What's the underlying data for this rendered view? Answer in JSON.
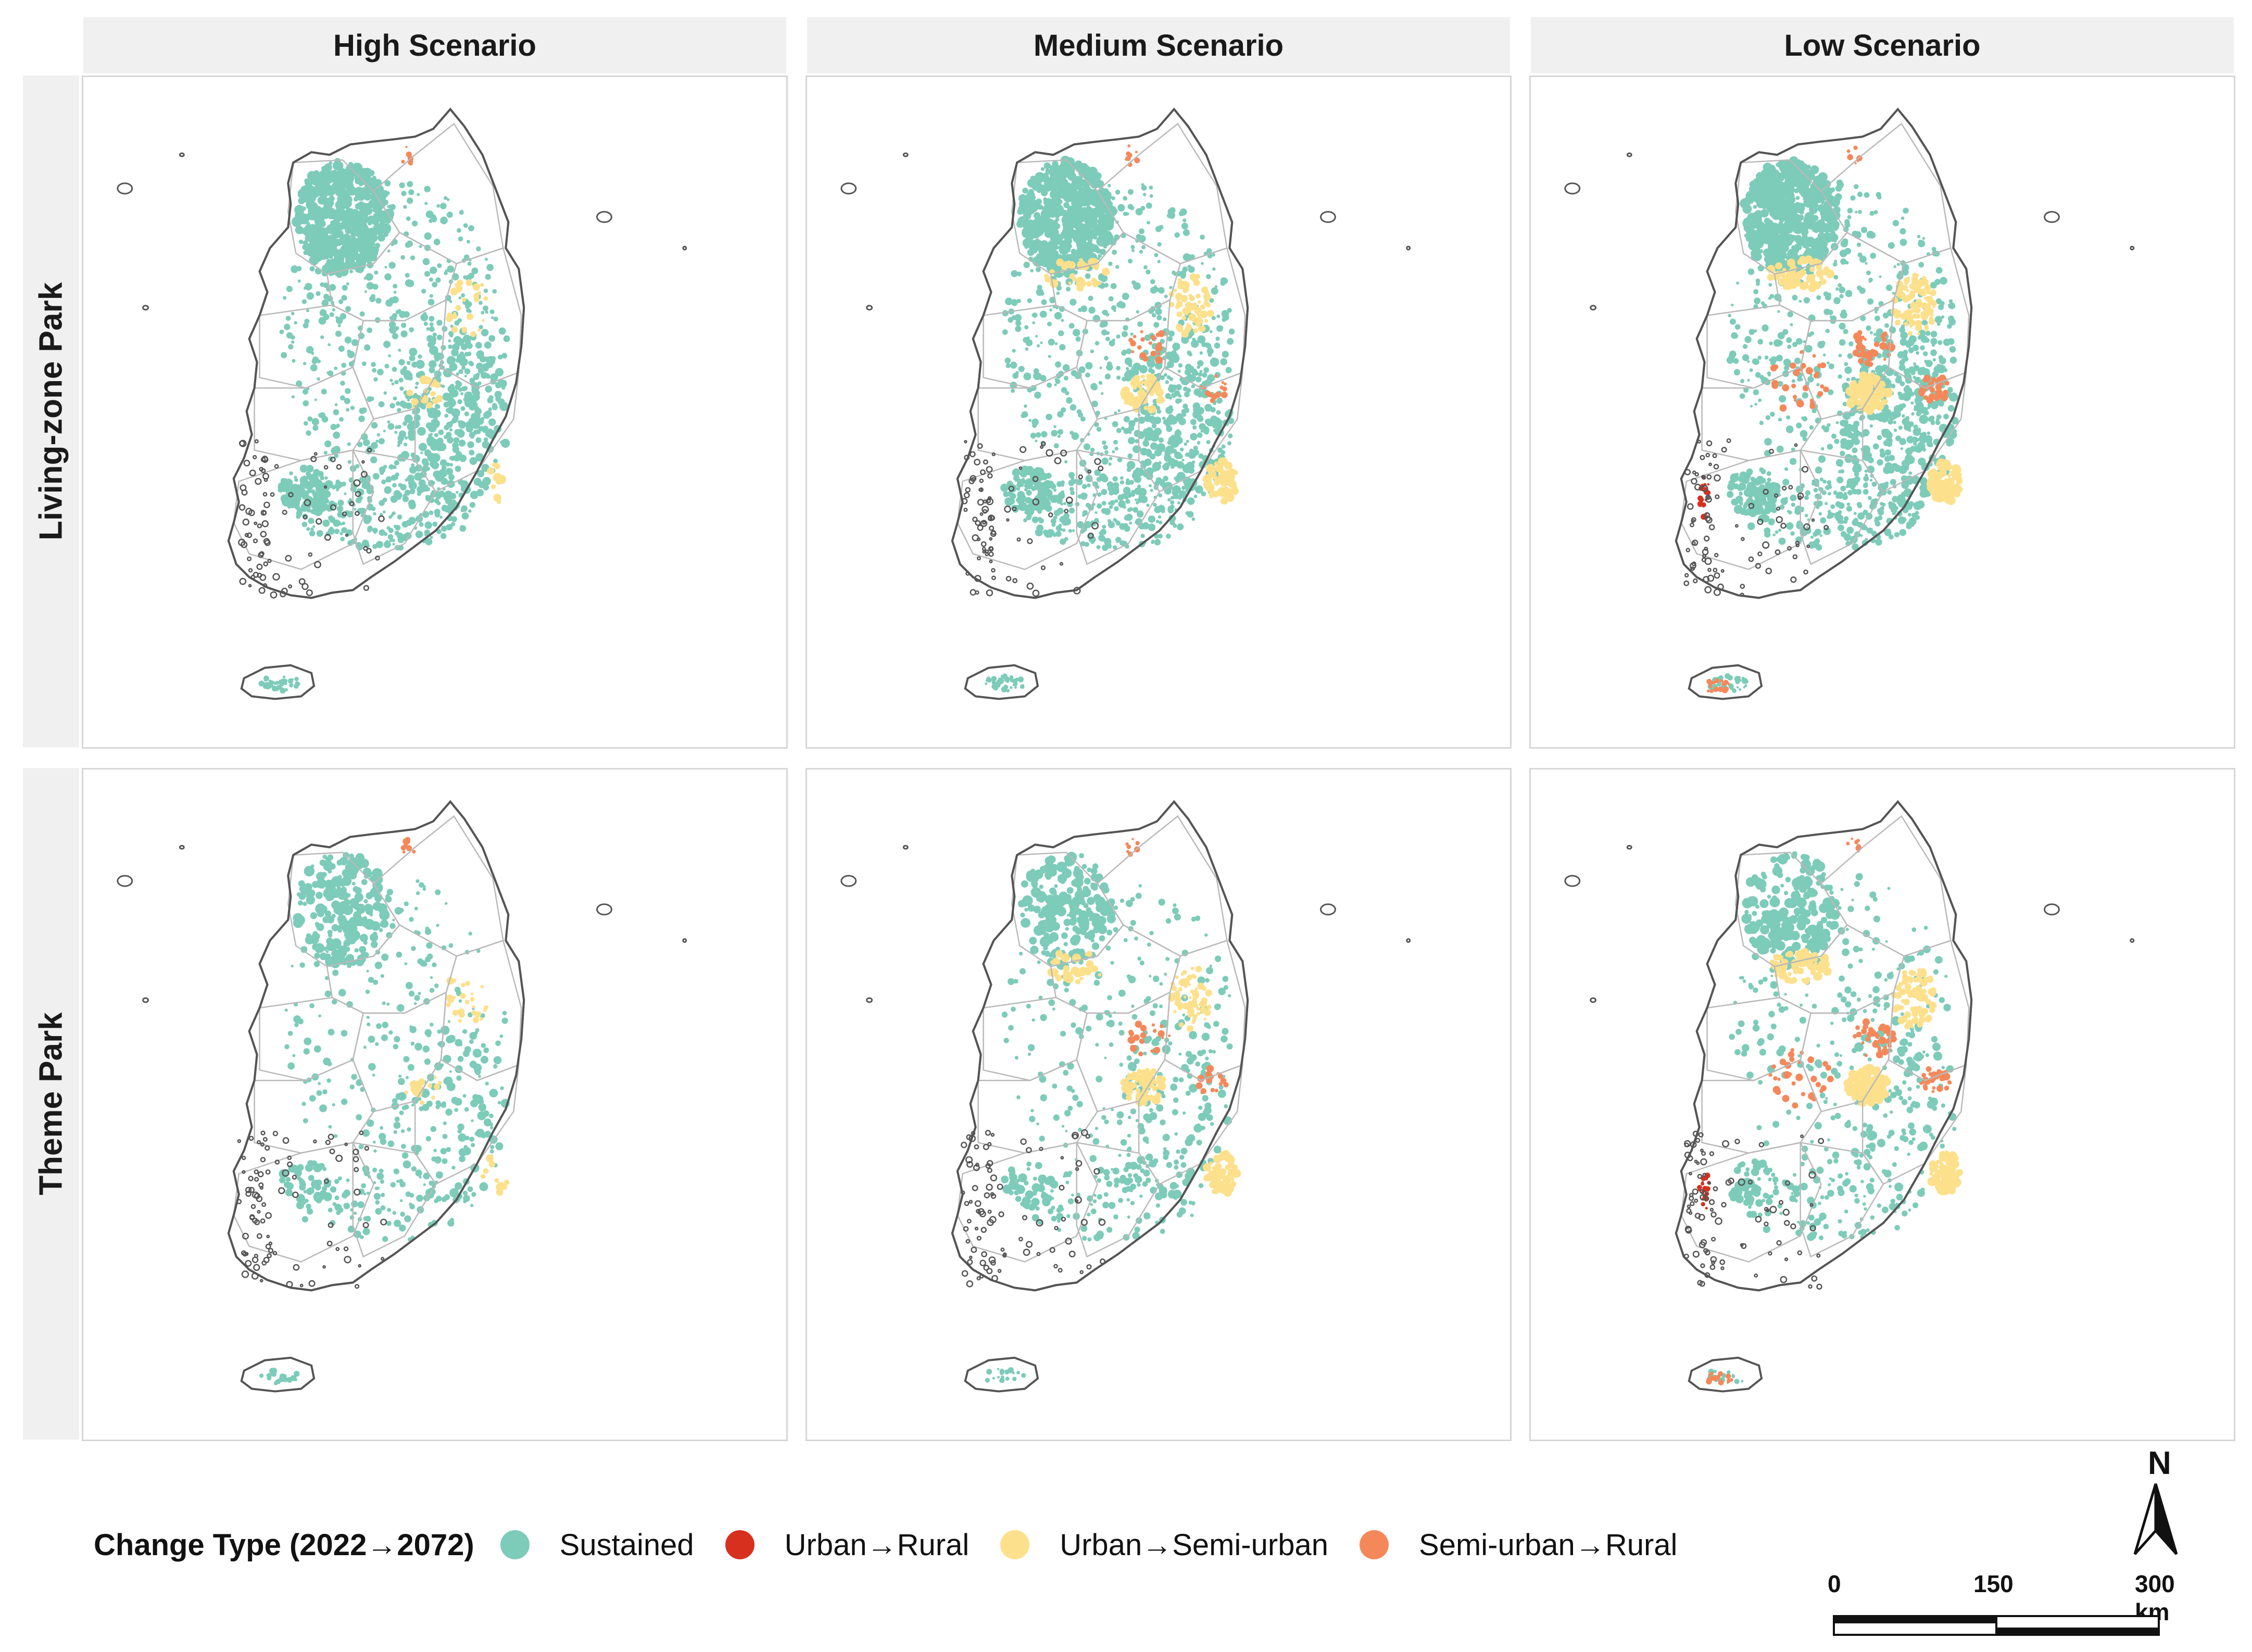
{
  "columns": [
    "High Scenario",
    "Medium Scenario",
    "Low Scenario"
  ],
  "rows": [
    "Living-zone Park",
    "Theme Park"
  ],
  "legend": {
    "title": "Change Type (2022→2072)",
    "items": [
      {
        "label": "Sustained",
        "color": "#7dcbb9"
      },
      {
        "label": "Urban→Rural",
        "color": "#d7301f"
      },
      {
        "label": "Urban→Semi-urban",
        "color": "#fde08b"
      },
      {
        "label": "Semi-urban→Rural",
        "color": "#f4885a"
      }
    ]
  },
  "north_arrow": {
    "label": "N"
  },
  "scale_bar": {
    "ticks": [
      "0",
      "150",
      "300 km"
    ]
  }
}
